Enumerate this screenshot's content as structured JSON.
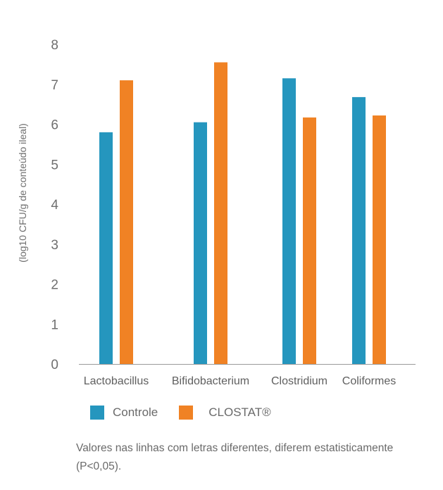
{
  "chart_data": {
    "type": "bar",
    "categories": [
      "Lactobacillus",
      "Bifidobacterium",
      "Clostridium",
      "Coliformes"
    ],
    "series": [
      {
        "name": "Controle",
        "values": [
          5.8,
          6.05,
          7.15,
          6.68
        ],
        "color": "#2596be"
      },
      {
        "name": "CLOSTAT®",
        "values": [
          7.1,
          7.55,
          6.17,
          6.22
        ],
        "color": "#f08224"
      }
    ],
    "ylabel": "(log10 CFU/g de conteúdo ileal)",
    "ylim": [
      0,
      8
    ],
    "yticks": [
      0,
      1,
      2,
      3,
      4,
      5,
      6,
      7,
      8
    ],
    "grid": false,
    "legend_position": "bottom-left"
  },
  "note": "Valores nas linhas com letras diferentes, diferem estatisticamente (P<0,05)."
}
